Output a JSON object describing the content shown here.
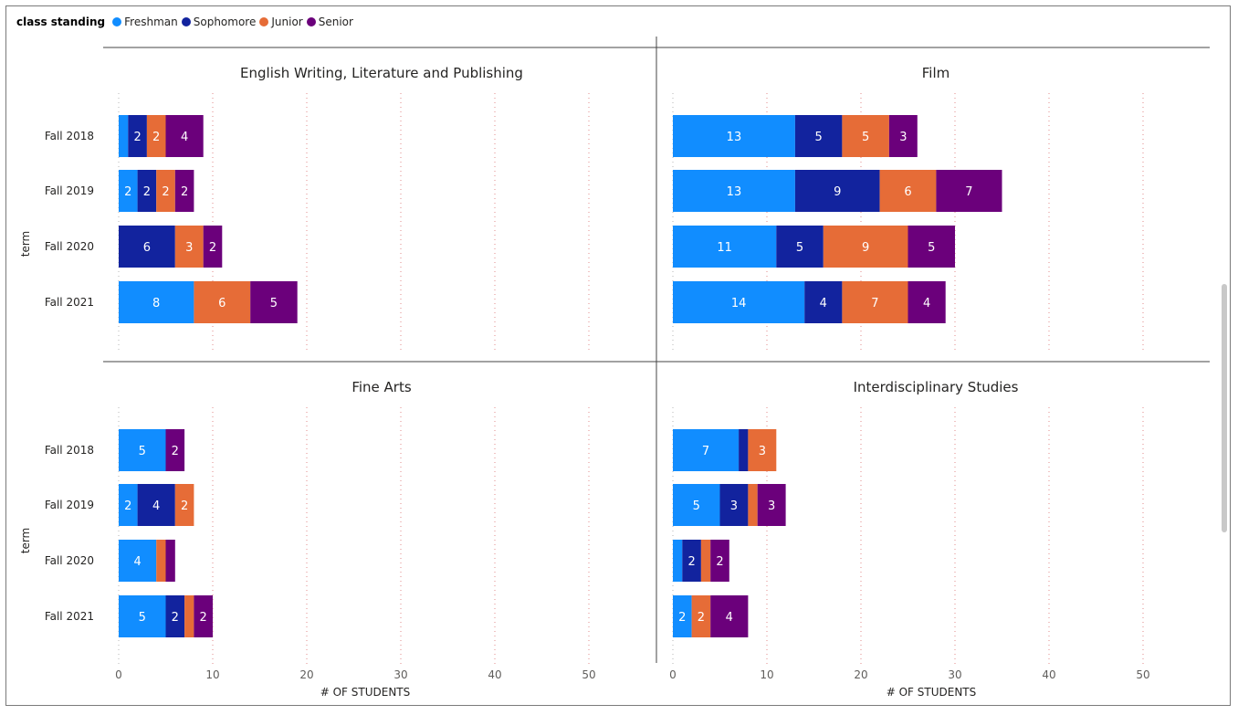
{
  "legend": {
    "title": "class standing",
    "items": [
      {
        "label": "Freshman",
        "color": "#118dff"
      },
      {
        "label": "Sophomore",
        "color": "#12239e"
      },
      {
        "label": "Junior",
        "color": "#e66c37"
      },
      {
        "label": "Senior",
        "color": "#6b007b"
      }
    ]
  },
  "chart_data": {
    "type": "bar",
    "orientation": "horizontal",
    "stacked": true,
    "ylabel": "term",
    "xlabel": "# OF STUDENTS",
    "xlim": [
      0,
      57
    ],
    "xticks": [
      0,
      10,
      20,
      30,
      40,
      50
    ],
    "categories": [
      "Fall 2018",
      "Fall 2019",
      "Fall 2020",
      "Fall 2021"
    ],
    "series_names": [
      "Freshman",
      "Sophomore",
      "Junior",
      "Senior"
    ],
    "panels": [
      {
        "title": "English Writing, Literature and Publishing",
        "values": [
          [
            1,
            2,
            2,
            4
          ],
          [
            2,
            2,
            2,
            2
          ],
          [
            0,
            6,
            3,
            2
          ],
          [
            8,
            0,
            6,
            5
          ]
        ]
      },
      {
        "title": "Film",
        "values": [
          [
            13,
            5,
            5,
            3
          ],
          [
            13,
            9,
            6,
            7
          ],
          [
            11,
            5,
            9,
            5
          ],
          [
            14,
            4,
            7,
            4
          ]
        ]
      },
      {
        "title": "Fine Arts",
        "values": [
          [
            5,
            0,
            0,
            2
          ],
          [
            2,
            4,
            2,
            0
          ],
          [
            4,
            0,
            1,
            1
          ],
          [
            5,
            2,
            1,
            2
          ]
        ]
      },
      {
        "title": "Interdisciplinary Studies",
        "values": [
          [
            7,
            1,
            3,
            0
          ],
          [
            5,
            3,
            1,
            3
          ],
          [
            1,
            2,
            1,
            2
          ],
          [
            2,
            0,
            2,
            4
          ]
        ]
      }
    ]
  }
}
